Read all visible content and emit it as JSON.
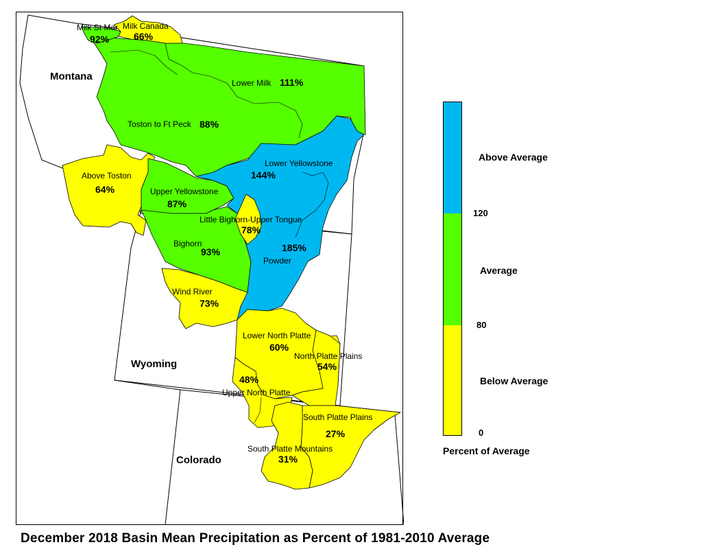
{
  "map": {
    "states": [
      {
        "id": "montana",
        "name": "Montana"
      },
      {
        "id": "wyoming",
        "name": "Wyoming"
      },
      {
        "id": "colorado",
        "name": "Colorado"
      }
    ],
    "basins": [
      {
        "id": "milk-st-mary",
        "name": "Milk St Mar",
        "pct": "92%",
        "category": "Average"
      },
      {
        "id": "milk-canada",
        "name": "Milk Canada",
        "pct": "66%",
        "category": "Below Average"
      },
      {
        "id": "lower-milk",
        "name": "Lower Milk",
        "pct": "111%",
        "category": "Average"
      },
      {
        "id": "toston-ft-peck",
        "name": "Toston to Ft Peck",
        "pct": "88%",
        "category": "Average"
      },
      {
        "id": "above-toston",
        "name": "Above Toston",
        "pct": "64%",
        "category": "Below Average"
      },
      {
        "id": "upper-yellowstone",
        "name": "Upper Yellowstone",
        "pct": "87%",
        "category": "Average"
      },
      {
        "id": "lower-yellowstone",
        "name": "Lower Yellowstone",
        "pct": "144%",
        "category": "Above Average"
      },
      {
        "id": "little-bighorn",
        "name": "Little Bighorn-Upper Tongue",
        "pct": "78%",
        "category": "Below Average"
      },
      {
        "id": "bighorn",
        "name": "Bighorn",
        "pct": "93%",
        "category": "Average"
      },
      {
        "id": "powder",
        "name": "Powder",
        "pct": "185%",
        "category": "Above Average"
      },
      {
        "id": "wind-river",
        "name": "Wind River",
        "pct": "73%",
        "category": "Below Average"
      },
      {
        "id": "lower-north-platte",
        "name": "Lower North Platte",
        "pct": "60%",
        "category": "Below Average"
      },
      {
        "id": "north-platte-plains",
        "name": "North Platte Plains",
        "pct": "54%",
        "category": "Below Average"
      },
      {
        "id": "upper-north-platte",
        "name": "Upper North Platte",
        "pct": "48%",
        "category": "Below Average"
      },
      {
        "id": "south-platte-plains",
        "name": "South Platte Plains",
        "pct": "27%",
        "category": "Below Average"
      },
      {
        "id": "south-platte-mountains",
        "name": "South Platte Mountains",
        "pct": "31%",
        "category": "Below Average"
      }
    ]
  },
  "legend": {
    "categories": [
      {
        "label": "Above Average",
        "color": "#00b8f0"
      },
      {
        "label": "Average",
        "color": "#55ff00"
      },
      {
        "label": "Below Average",
        "color": "#ffff00"
      }
    ],
    "ticks": [
      "120",
      "80",
      "0"
    ],
    "title": "Percent of Average"
  },
  "caption": "December 2018 Basin Mean Precipitation as Percent of 1981-2010 Average"
}
